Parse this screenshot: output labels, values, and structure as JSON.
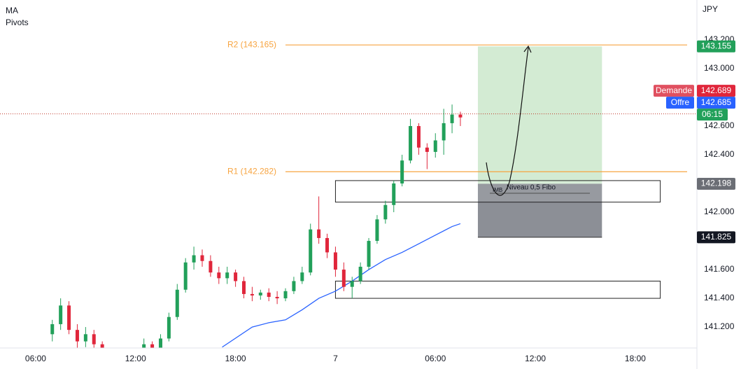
{
  "chart_data": {
    "type": "candlestick",
    "indicators": [
      "MA",
      "Pivots"
    ],
    "currency": "JPY",
    "x": [
      7,
      7.5,
      8,
      8.5,
      9,
      9.5,
      10,
      12.5,
      13,
      13.5,
      14,
      14.5,
      15,
      15.5,
      16,
      16.5,
      17,
      17.5,
      18,
      18.5,
      19,
      19.5,
      20,
      20.5,
      21,
      21.5,
      22,
      22.5,
      23,
      23.5,
      24,
      24.5,
      25,
      25.5,
      26,
      26.5,
      27,
      27.5,
      28,
      28.5,
      29,
      29.5,
      30,
      30.5,
      31,
      31.5
    ],
    "open": [
      141.15,
      141.22,
      141.35,
      141.18,
      141.1,
      141.15,
      141.08,
      141,
      141.08,
      141.02,
      141.12,
      141.27,
      141.46,
      141.65,
      141.7,
      141.66,
      141.58,
      141.54,
      141.58,
      141.52,
      141.43,
      141.42,
      141.44,
      141.41,
      141.4,
      141.45,
      141.52,
      141.58,
      141.88,
      141.82,
      141.72,
      141.6,
      141.48,
      141.52,
      141.62,
      141.8,
      141.95,
      142.05,
      142.2,
      142.36,
      142.6,
      142.45,
      142.42,
      142.5,
      142.62,
      142.68
    ],
    "high": [
      141.25,
      141.4,
      141.38,
      141.22,
      141.2,
      141.18,
      141.1,
      141.12,
      141.1,
      141.15,
      141.3,
      141.5,
      141.68,
      141.76,
      141.74,
      141.7,
      141.62,
      141.62,
      141.6,
      141.55,
      141.48,
      141.46,
      141.47,
      141.45,
      141.47,
      141.55,
      141.62,
      141.92,
      142.11,
      141.85,
      141.76,
      141.65,
      141.55,
      141.65,
      141.82,
      141.98,
      142.08,
      142.22,
      142.4,
      142.65,
      142.62,
      142.48,
      142.55,
      142.72,
      142.75,
      142.7
    ],
    "low": [
      141.1,
      141.18,
      141.15,
      141.05,
      141.06,
      141.05,
      141,
      140.98,
      140.98,
      141,
      141.1,
      141.25,
      141.44,
      141.6,
      141.62,
      141.55,
      141.5,
      141.5,
      141.48,
      141.4,
      141.38,
      141.39,
      141.38,
      141.36,
      141.38,
      141.43,
      141.5,
      141.56,
      141.78,
      141.68,
      141.55,
      141.45,
      141.4,
      141.5,
      141.6,
      141.78,
      141.92,
      142,
      142.18,
      142.34,
      142.4,
      142.3,
      142.38,
      142.4,
      142.55,
      142.6
    ],
    "close": [
      141.22,
      141.35,
      141.18,
      141.1,
      141.15,
      141.08,
      141.03,
      141.08,
      141.02,
      141.12,
      141.27,
      141.46,
      141.65,
      141.7,
      141.66,
      141.58,
      141.54,
      141.58,
      141.52,
      141.43,
      141.42,
      141.44,
      141.41,
      141.4,
      141.45,
      141.52,
      141.58,
      141.88,
      141.82,
      141.72,
      141.6,
      141.48,
      141.52,
      141.62,
      141.8,
      141.95,
      142.05,
      142.2,
      142.36,
      142.6,
      142.45,
      142.42,
      142.5,
      142.62,
      142.68,
      142.66
    ],
    "up_color": "#22a05a",
    "down_color": "#e0263b",
    "xlim": [
      3.86,
      45.7
    ],
    "xticks": [
      {
        "value": 6,
        "label": "06:00"
      },
      {
        "value": 12,
        "label": "12:00"
      },
      {
        "value": 18,
        "label": "18:00"
      },
      {
        "value": 24,
        "label": "7"
      },
      {
        "value": 30,
        "label": "06:00"
      },
      {
        "value": 36,
        "label": "12:00"
      },
      {
        "value": 42,
        "label": "18:00"
      }
    ],
    "ylim": [
      141.054,
      143.478
    ],
    "yticks": [
      {
        "value": 143.2,
        "label": "143.200"
      },
      {
        "value": 143,
        "label": "143.000"
      },
      {
        "value": 142.6,
        "label": "142.600"
      },
      {
        "value": 142.4,
        "label": "142.400"
      },
      {
        "value": 142,
        "label": "142.000"
      },
      {
        "value": 141.6,
        "label": "141.600"
      },
      {
        "value": 141.4,
        "label": "141.400"
      },
      {
        "value": 141.2,
        "label": "141.200"
      }
    ],
    "ma": {
      "color": "#2962ff",
      "x": [
        17.2,
        19,
        20,
        21,
        22,
        23,
        24,
        25,
        26,
        27,
        28,
        29,
        30,
        31,
        31.5
      ],
      "values": [
        141.06,
        141.2,
        141.23,
        141.25,
        141.32,
        141.4,
        141.45,
        141.52,
        141.6,
        141.67,
        141.72,
        141.78,
        141.84,
        141.9,
        141.92
      ]
    },
    "pivot_color": "#f7a440",
    "pivots": [
      {
        "label": "R2 (143.165)",
        "value": 143.165
      },
      {
        "label": "R1 (142.282)",
        "value": 142.282
      }
    ],
    "zones": [
      {
        "x0": 24,
        "x1": 43.5,
        "top": 142.22,
        "bottom": 142.07
      },
      {
        "x0": 24,
        "x1": 43.5,
        "top": 141.52,
        "bottom": 141.4
      }
    ],
    "position": {
      "x0": 32.55,
      "x1": 40,
      "target": 143.155,
      "entry": 142.198,
      "stop": 141.825
    },
    "annotations": [
      "IMB",
      "Niveau 0,5 Fibo"
    ],
    "price_tags": {
      "demand_label": "Demande",
      "demand": 142.689,
      "offer_label": "Offre",
      "offer": 142.685,
      "countdown": "06:15"
    }
  }
}
